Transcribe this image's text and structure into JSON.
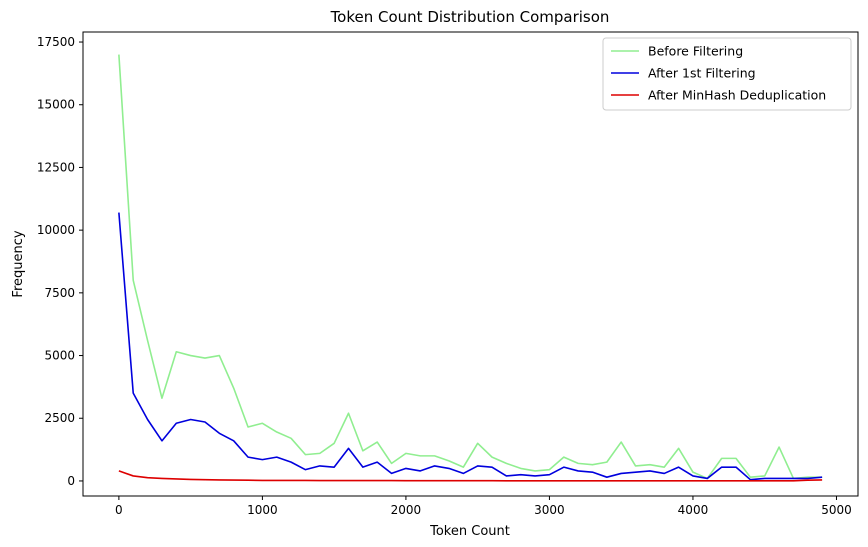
{
  "chart_data": {
    "type": "line",
    "title": "Token Count Distribution Comparison",
    "xlabel": "Token Count",
    "ylabel": "Frequency",
    "xlim": [
      -250,
      5150
    ],
    "ylim": [
      -600,
      17900
    ],
    "xticks": [
      0,
      1000,
      2000,
      3000,
      4000,
      5000
    ],
    "yticks": [
      0,
      2500,
      5000,
      7500,
      10000,
      12500,
      15000,
      17500
    ],
    "grid": false,
    "legend_position": "top-right",
    "x": [
      0,
      100,
      200,
      300,
      400,
      500,
      600,
      700,
      800,
      900,
      1000,
      1100,
      1200,
      1300,
      1400,
      1500,
      1600,
      1700,
      1800,
      1900,
      2000,
      2100,
      2200,
      2300,
      2400,
      2500,
      2600,
      2700,
      2800,
      2900,
      3000,
      3100,
      3200,
      3300,
      3400,
      3500,
      3600,
      3700,
      3800,
      3900,
      4000,
      4100,
      4200,
      4300,
      4400,
      4500,
      4600,
      4700,
      4800,
      4900
    ],
    "series": [
      {
        "name": "Before Filtering",
        "color": "#90ee90",
        "values": [
          17000,
          8000,
          5600,
          3300,
          5150,
          5000,
          4900,
          5000,
          3700,
          2150,
          2300,
          1950,
          1700,
          1050,
          1100,
          1500,
          2700,
          1200,
          1550,
          700,
          1100,
          1000,
          1000,
          800,
          550,
          1500,
          950,
          700,
          500,
          400,
          450,
          950,
          700,
          650,
          750,
          1550,
          600,
          650,
          550,
          1300,
          350,
          100,
          900,
          900,
          150,
          200,
          1350,
          100,
          150,
          150
        ]
      },
      {
        "name": "After 1st Filtering",
        "color": "#0000dd",
        "values": [
          10700,
          3500,
          2450,
          1600,
          2300,
          2450,
          2350,
          1900,
          1600,
          950,
          850,
          950,
          750,
          450,
          600,
          550,
          1300,
          550,
          750,
          300,
          500,
          400,
          600,
          500,
          300,
          600,
          550,
          200,
          250,
          200,
          250,
          550,
          400,
          350,
          150,
          300,
          350,
          400,
          300,
          550,
          200,
          100,
          550,
          550,
          50,
          100,
          100,
          100,
          100,
          150
        ]
      },
      {
        "name": "After MinHash Deduplication",
        "color": "#dd0000",
        "values": [
          400,
          200,
          130,
          100,
          80,
          60,
          50,
          40,
          35,
          30,
          20,
          20,
          20,
          20,
          15,
          15,
          15,
          15,
          15,
          15,
          10,
          10,
          10,
          10,
          10,
          10,
          10,
          5,
          5,
          5,
          5,
          5,
          5,
          5,
          5,
          5,
          5,
          5,
          5,
          5,
          5,
          5,
          5,
          5,
          5,
          5,
          5,
          5,
          30,
          40
        ]
      }
    ]
  }
}
